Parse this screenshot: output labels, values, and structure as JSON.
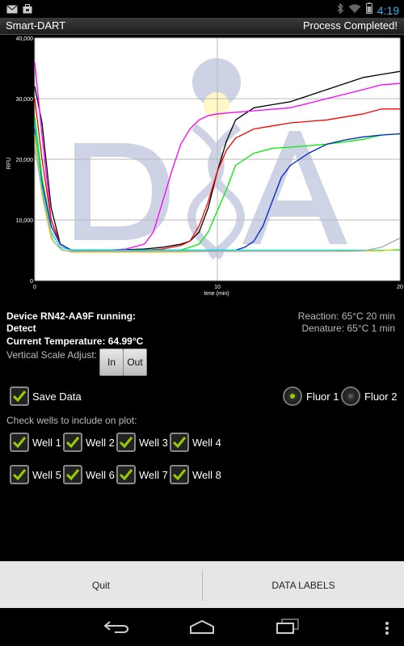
{
  "status_bar": {
    "time": "4:19"
  },
  "title_bar": {
    "app_title": "Smart-DART",
    "status": "Process Completed!"
  },
  "chart_data": {
    "type": "line",
    "xlabel": "time (min)",
    "ylabel": "RFU",
    "xlim": [
      0,
      20
    ],
    "ylim": [
      0,
      40000
    ],
    "x_ticks": [
      "0",
      "10",
      "20"
    ],
    "y_ticks": [
      "0",
      "10,000",
      "20,000",
      "30,000",
      "40,000"
    ],
    "grid": true,
    "series": [
      {
        "color": "#000000",
        "x": [
          0,
          0.4,
          0.9,
          1.4,
          2,
          4,
          6,
          7,
          8,
          8.5,
          9,
          9.5,
          10,
          10.5,
          11,
          12,
          13,
          14,
          15,
          16,
          17,
          18,
          19,
          20
        ],
        "y": [
          32000,
          26000,
          12000,
          6000,
          5000,
          5000,
          5200,
          5500,
          6000,
          6500,
          8000,
          12000,
          18000,
          23000,
          26500,
          28500,
          29000,
          29500,
          30500,
          31500,
          32500,
          33500,
          34000,
          34500
        ]
      },
      {
        "color": "#ff00ff",
        "x": [
          0,
          0.4,
          0.9,
          1.4,
          2,
          4,
          5,
          6,
          6.5,
          7,
          7.5,
          8,
          8.5,
          9,
          9.5,
          10,
          12,
          14,
          16,
          18,
          19,
          20
        ],
        "y": [
          36000,
          24000,
          10000,
          6000,
          5000,
          5000,
          5200,
          6000,
          8000,
          13000,
          18000,
          22500,
          25000,
          26500,
          27200,
          27500,
          28000,
          28500,
          30000,
          31500,
          32300,
          32500
        ]
      },
      {
        "color": "#ff0000",
        "x": [
          0,
          0.4,
          0.9,
          1.4,
          2,
          4,
          6,
          7,
          8,
          8.5,
          9,
          9.5,
          10,
          10.5,
          11,
          12,
          13,
          14,
          16,
          18,
          19,
          20
        ],
        "y": [
          30000,
          20000,
          10000,
          6000,
          5000,
          5000,
          5000,
          5200,
          5800,
          6500,
          9000,
          13000,
          18000,
          21500,
          23500,
          25000,
          25500,
          26000,
          26500,
          27500,
          28300,
          28300
        ]
      },
      {
        "color": "#00ee00",
        "x": [
          0,
          0.4,
          0.9,
          1.4,
          2,
          4,
          6,
          8,
          9,
          9.5,
          10,
          10.5,
          11,
          12,
          13,
          14,
          16,
          18,
          19,
          20
        ],
        "y": [
          27000,
          17000,
          9000,
          6000,
          5000,
          5000,
          5000,
          5000,
          6000,
          8000,
          11500,
          15000,
          19000,
          21000,
          21800,
          22000,
          22500,
          23300,
          24000,
          24200
        ]
      },
      {
        "color": "#0022cc",
        "x": [
          0,
          0.4,
          0.9,
          1.4,
          2,
          4,
          6,
          8,
          10,
          11,
          11.5,
          12,
          12.5,
          13,
          13.5,
          14,
          15,
          16,
          17,
          18,
          19,
          20
        ],
        "y": [
          25000,
          16000,
          9000,
          6000,
          5000,
          5000,
          5000,
          5000,
          5000,
          5000,
          5500,
          6500,
          9000,
          13000,
          17000,
          19000,
          21000,
          22500,
          23200,
          23700,
          24000,
          24200
        ]
      },
      {
        "color": "#00dddd",
        "x": [
          0,
          0.4,
          0.9,
          1.4,
          2,
          4,
          6,
          8,
          10,
          12,
          14,
          16,
          18,
          20
        ],
        "y": [
          26000,
          15000,
          8000,
          5500,
          5000,
          5000,
          5000,
          5000,
          5000,
          5000,
          5000,
          5000,
          5000,
          5000
        ]
      },
      {
        "color": "#dddd00",
        "x": [
          0,
          0.4,
          0.9,
          1.4,
          2,
          4,
          6,
          8,
          10,
          12,
          14,
          16,
          18,
          19,
          20
        ],
        "y": [
          24000,
          14000,
          7000,
          5200,
          4700,
          4700,
          4700,
          4700,
          4800,
          4800,
          4800,
          4800,
          4900,
          4900,
          5200
        ]
      },
      {
        "color": "#aaaaaa",
        "x": [
          0,
          0.5,
          1,
          1.5,
          2,
          4,
          6,
          8,
          10,
          12,
          14,
          16,
          17,
          18,
          19,
          20
        ],
        "y": [
          22000,
          13000,
          6500,
          5000,
          4800,
          4800,
          4800,
          4800,
          4800,
          4800,
          4800,
          4800,
          4800,
          4900,
          5500,
          7000
        ]
      }
    ]
  },
  "device": {
    "running": "Device RN42-AA9F running:",
    "state": "Detect",
    "temperature": "Current Temperature: 64.99°C",
    "reaction": "Reaction: 65°C 20 min",
    "denature": "Denature: 65°C 1 min"
  },
  "scale": {
    "label": "Vertical Scale Adjust:",
    "in_label": "In",
    "out_label": "Out"
  },
  "save_data": {
    "label": "Save Data",
    "checked": true
  },
  "fluor": {
    "fluor1_label": "Fluor 1",
    "fluor2_label": "Fluor 2",
    "selected": 1,
    "selected_color": "#99cc00"
  },
  "wells": {
    "prompt": "Check wells to include on plot:",
    "items": [
      {
        "label": "Well 1",
        "checked": true
      },
      {
        "label": "Well 2",
        "checked": true
      },
      {
        "label": "Well 3",
        "checked": true
      },
      {
        "label": "Well 4",
        "checked": true
      },
      {
        "label": "Well 5",
        "checked": true
      },
      {
        "label": "Well 6",
        "checked": true
      },
      {
        "label": "Well 7",
        "checked": true
      },
      {
        "label": "Well 8",
        "checked": true
      }
    ]
  },
  "bottom_buttons": {
    "quit_label": "Quit",
    "data_labels_label": "DATA LABELS"
  },
  "accent_color": "#99cc00"
}
